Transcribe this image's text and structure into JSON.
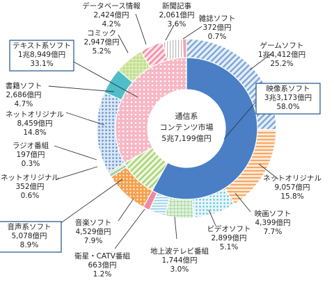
{
  "chart_data": {
    "type": "donut",
    "center_label": [
      "通信系",
      "コンテンツ市場",
      "5兆7,199億円"
    ],
    "inner_ring": [
      {
        "label": "映像系ソフト",
        "amount": "3兆3,173億円",
        "percent": "58.0%",
        "value": 58.0,
        "color": "#4a7fc6",
        "pattern": "solid"
      },
      {
        "label": "音声系ソフト",
        "amount": "5,078億円",
        "percent": "8.9%",
        "value": 8.9,
        "color": "#b8d98a",
        "pattern": "diag"
      },
      {
        "label": "テキスト系ソフト",
        "amount": "1兆8,949億円",
        "percent": "33.1%",
        "value": 33.1,
        "color": "#f1a3b4",
        "pattern": "dots"
      }
    ],
    "outer_ring": [
      {
        "label": "ゲームソフト",
        "amount": "1兆4,412億円",
        "percent": "25.2%",
        "value": 25.2,
        "color": "#9fbfe3",
        "pattern": "diag"
      },
      {
        "label": "ネットオリジナル",
        "amount": "9,057億円",
        "percent": "15.8%",
        "value": 15.8,
        "color": "#f7b27a",
        "pattern": "hlines"
      },
      {
        "label": "映画ソフト",
        "amount": "4,399億円",
        "percent": "7.7%",
        "value": 7.7,
        "color": "#aee0ec",
        "pattern": "dots"
      },
      {
        "label": "ビデオソフト",
        "amount": "2,899億円",
        "percent": "5.1%",
        "value": 5.1,
        "color": "#a9d8a0",
        "pattern": "grid"
      },
      {
        "label": "地上波テレビ番組",
        "amount": "1,744億円",
        "percent": "3.0%",
        "value": 3.0,
        "color": "#c7e6f2",
        "pattern": "hlines"
      },
      {
        "label": "衛星・CATV番組",
        "amount": "663億円",
        "percent": "1.2%",
        "value": 1.2,
        "color": "#f08aa4",
        "pattern": "solid"
      },
      {
        "label": "音楽ソフト",
        "amount": "4,529億円",
        "percent": "7.9%",
        "value": 7.9,
        "color": "#f29a45",
        "pattern": "dots"
      },
      {
        "label": "ネットオリジナル",
        "amount": "352億円",
        "percent": "0.6%",
        "value": 0.6,
        "color": "#9ad2b8",
        "pattern": "solid"
      },
      {
        "label": "ラジオ番組",
        "amount": "197億円",
        "percent": "0.3%",
        "value": 0.3,
        "color": "#e8d36a",
        "pattern": "solid"
      },
      {
        "label": "ネットオリジナル",
        "amount": "8,459億円",
        "percent": "14.8%",
        "value": 14.8,
        "color": "#8cb2de",
        "pattern": "dots"
      },
      {
        "label": "書籍ソフト",
        "amount": "2,686億円",
        "percent": "4.7%",
        "value": 4.7,
        "color": "#4fbec9",
        "pattern": "solid"
      },
      {
        "label": "コミック",
        "amount": "2,947億円",
        "percent": "5.2%",
        "value": 5.2,
        "color": "#b6d77e",
        "pattern": "grid"
      },
      {
        "label": "データベース情報",
        "amount": "2,424億円",
        "percent": "4.2%",
        "value": 4.2,
        "color": "#f6a5b6",
        "pattern": "diag"
      },
      {
        "label": "新聞記事",
        "amount": "2,061億円",
        "percent": "3.6%",
        "value": 3.6,
        "color": "#ffffff",
        "pattern": "vlines"
      },
      {
        "label": "雑誌ソフト",
        "amount": "372億円",
        "percent": "0.7%",
        "value": 0.7,
        "color": "#f3a4b4",
        "pattern": "solid"
      }
    ]
  }
}
